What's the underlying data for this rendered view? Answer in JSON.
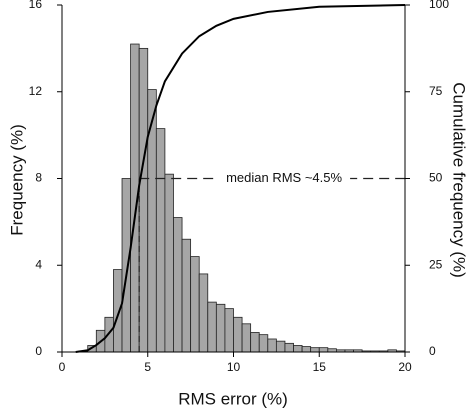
{
  "chart_data": {
    "type": "histogram",
    "x_label": "RMS error (%)",
    "y_label": "Frequency (%)",
    "y2_label": "Cumulative frequency (%)",
    "bins": [
      1.0,
      1.5,
      2.0,
      2.5,
      3.0,
      3.5,
      4.0,
      4.5,
      5.0,
      5.5,
      6.0,
      6.5,
      7.0,
      7.5,
      8.0,
      8.5,
      9.0,
      9.5,
      10.0,
      10.5,
      11.0,
      11.5,
      12.0,
      12.5,
      13.0,
      13.5,
      14.0,
      14.5,
      15.0,
      15.5,
      16.0,
      16.5,
      17.0,
      17.5,
      18.0,
      18.5,
      19.0,
      19.5,
      20.0
    ],
    "values": [
      0.05,
      0.3,
      1.0,
      1.6,
      3.8,
      8.0,
      14.2,
      14.0,
      12.1,
      10.3,
      8.2,
      6.2,
      5.2,
      4.4,
      3.6,
      2.3,
      2.2,
      2.0,
      1.6,
      1.3,
      0.9,
      0.8,
      0.6,
      0.5,
      0.4,
      0.3,
      0.25,
      0.2,
      0.2,
      0.15,
      0.1,
      0.1,
      0.1,
      0.05,
      0.05,
      0.05,
      0.1,
      0.05
    ],
    "color": "#a6a6a6",
    "cumulative": {
      "axis": "y2",
      "color": "#000000",
      "x": [
        0.8,
        1.5,
        2,
        2.5,
        3,
        3.5,
        4,
        4.5,
        5,
        5.5,
        6,
        7,
        8,
        9,
        10,
        12,
        15,
        20
      ],
      "values": [
        0,
        0.5,
        2,
        4,
        7,
        14,
        30,
        48,
        62,
        71,
        78,
        86,
        91,
        94,
        96,
        98,
        99.5,
        100
      ]
    },
    "median_line": {
      "x": 4.5,
      "y2": 50
    },
    "annotation": "median RMS ~4.5%",
    "xlim": [
      0,
      20
    ],
    "xticks": [
      0,
      5,
      10,
      15,
      20
    ],
    "ylim": [
      0,
      16
    ],
    "yticks": [
      0,
      4,
      8,
      12,
      16
    ],
    "y2lim": [
      0,
      100
    ],
    "y2ticks": [
      0,
      25,
      50,
      75,
      100
    ]
  }
}
